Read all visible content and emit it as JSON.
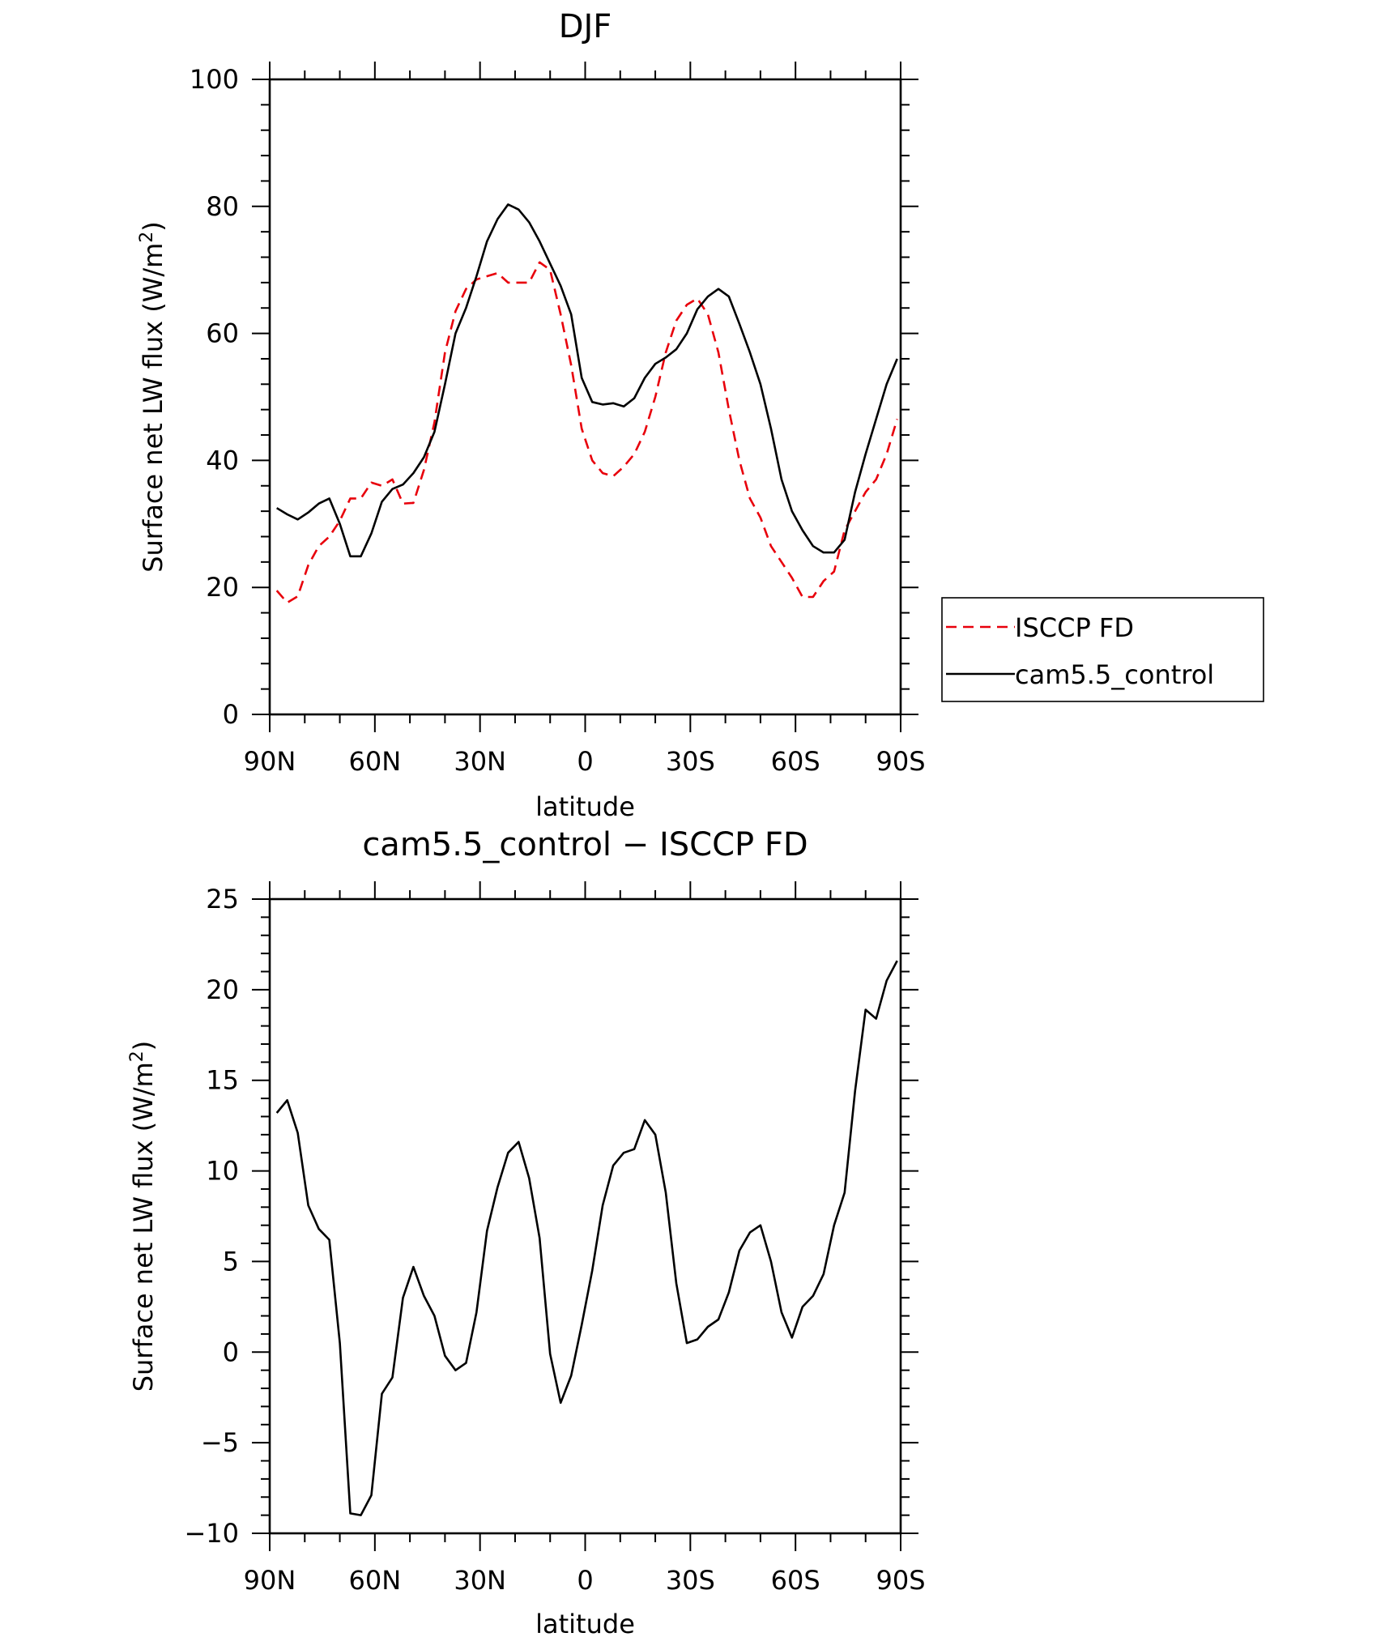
{
  "chart_data": [
    {
      "type": "line",
      "title": "DJF",
      "xlabel": "latitude",
      "ylabel": "Surface net LW flux (W/m²)",
      "ylabel_main": "Surface net LW flux (W/m",
      "ylabel_sup": "2",
      "ylabel_end": ")",
      "xlim": [
        90,
        -90
      ],
      "ylim": [
        0,
        100
      ],
      "x_ticks": [
        90,
        60,
        30,
        0,
        -30,
        -60,
        -90
      ],
      "x_tick_labels": [
        "90N",
        "60N",
        "30N",
        "0",
        "30S",
        "60S",
        "90S"
      ],
      "y_ticks": [
        0,
        20,
        40,
        60,
        80,
        100
      ],
      "y_tick_labels": [
        "0",
        "20",
        "40",
        "60",
        "80",
        "100"
      ],
      "legend_position": "right",
      "series": [
        {
          "name": "ISCCP FD",
          "color": "#e8000b",
          "style": "dashed",
          "x": [
            88,
            85,
            82,
            79,
            76,
            73,
            70,
            67,
            64,
            61,
            58,
            55,
            52,
            49,
            46,
            43,
            40,
            37,
            34,
            31,
            28,
            25,
            22,
            19,
            16,
            13,
            10,
            7,
            4,
            1,
            -2,
            -5,
            -8,
            -11,
            -14,
            -17,
            -20,
            -23,
            -26,
            -29,
            -32,
            -35,
            -38,
            -41,
            -44,
            -47,
            -50,
            -53,
            -56,
            -59,
            -62,
            -65,
            -68,
            -71,
            -74,
            -77,
            -80,
            -83,
            -86,
            -89
          ],
          "y": [
            19.5,
            17.6,
            18.6,
            23.5,
            26.5,
            28,
            30.5,
            34,
            34,
            36.5,
            36,
            37,
            33.2,
            33.3,
            38.5,
            46,
            57,
            63.5,
            67,
            68.5,
            69,
            69.5,
            68,
            68,
            68,
            71.2,
            70,
            63,
            55,
            45,
            40,
            38,
            37.5,
            39,
            41,
            44.5,
            50,
            57,
            62,
            64.5,
            65.5,
            63,
            57,
            48,
            40,
            34,
            31,
            26.5,
            24,
            21.5,
            18.5,
            18.5,
            21,
            22.5,
            29,
            32,
            35,
            37,
            41,
            46.5
          ]
        },
        {
          "name": "cam5.5_control",
          "color": "#000000",
          "style": "solid",
          "x": [
            88,
            85,
            82,
            79,
            76,
            73,
            70,
            67,
            64,
            61,
            58,
            55,
            52,
            49,
            46,
            43,
            40,
            37,
            34,
            31,
            28,
            25,
            22,
            19,
            16,
            13,
            10,
            7,
            4,
            1,
            -2,
            -5,
            -8,
            -11,
            -14,
            -17,
            -20,
            -23,
            -26,
            -29,
            -32,
            -35,
            -38,
            -41,
            -44,
            -47,
            -50,
            -53,
            -56,
            -59,
            -62,
            -65,
            -68,
            -71,
            -74,
            -77,
            -80,
            -83,
            -86,
            -89
          ],
          "y": [
            32.5,
            31.5,
            30.7,
            31.8,
            33.2,
            34,
            30,
            24.9,
            24.9,
            28.5,
            33.5,
            35.5,
            36.2,
            38,
            40.5,
            44.5,
            52,
            60,
            64,
            69,
            74.5,
            78,
            80.3,
            79.5,
            77.5,
            74.5,
            71,
            67.5,
            63,
            53,
            49.2,
            48.8,
            49,
            48.5,
            49.8,
            53,
            55.2,
            56.2,
            57.5,
            60,
            63.8,
            65.8,
            67,
            65.8,
            61.5,
            57,
            52,
            45,
            37,
            32,
            29,
            26.5,
            25.5,
            25.5,
            27.5,
            35,
            41,
            46.5,
            52,
            56
          ]
        }
      ]
    },
    {
      "type": "line",
      "title": "cam5.5_control − ISCCP FD",
      "xlabel": "latitude",
      "ylabel": "Surface net LW flux (W/m²)",
      "ylabel_main": "Surface net LW flux (W/m",
      "ylabel_sup": "2",
      "ylabel_end": ")",
      "xlim": [
        90,
        -90
      ],
      "ylim": [
        -10,
        25
      ],
      "x_ticks": [
        90,
        60,
        30,
        0,
        -30,
        -60,
        -90
      ],
      "x_tick_labels": [
        "90N",
        "60N",
        "30N",
        "0",
        "30S",
        "60S",
        "90S"
      ],
      "y_ticks": [
        -10,
        -5,
        0,
        5,
        10,
        15,
        20,
        25
      ],
      "y_tick_labels": [
        "−10",
        "−5",
        "0",
        "5",
        "10",
        "15",
        "20",
        "25"
      ],
      "series": [
        {
          "color": "#000000",
          "style": "solid",
          "x": [
            88,
            85,
            82,
            79,
            76,
            73,
            70,
            67,
            64,
            61,
            58,
            55,
            52,
            49,
            46,
            43,
            40,
            37,
            34,
            31,
            28,
            25,
            22,
            19,
            16,
            13,
            10,
            7,
            4,
            1,
            -2,
            -5,
            -8,
            -11,
            -14,
            -17,
            -20,
            -23,
            -26,
            -29,
            -32,
            -35,
            -38,
            -41,
            -44,
            -47,
            -50,
            -53,
            -56,
            -59,
            -62,
            -65,
            -68,
            -71,
            -74,
            -77,
            -80,
            -83,
            -86,
            -89
          ],
          "y": [
            13.2,
            13.9,
            12.1,
            8.1,
            6.8,
            6.2,
            0.5,
            -8.9,
            -9,
            -7.9,
            -2.3,
            -1.4,
            3,
            4.7,
            3.1,
            2,
            -0.2,
            -1,
            -0.6,
            2.2,
            6.7,
            9.1,
            11,
            11.6,
            9.6,
            6.3,
            -0.1,
            -2.8,
            -1.3,
            1.5,
            4.5,
            8.1,
            10.3,
            11,
            11.2,
            12.8,
            12,
            8.8,
            3.8,
            0.5,
            0.7,
            1.4,
            1.8,
            3.3,
            5.6,
            6.6,
            7,
            5,
            2.2,
            0.8,
            2.5,
            3.1,
            4.3,
            7,
            8.8,
            14.4,
            18.9,
            18.4,
            20.5,
            21.6
          ]
        }
      ]
    }
  ]
}
